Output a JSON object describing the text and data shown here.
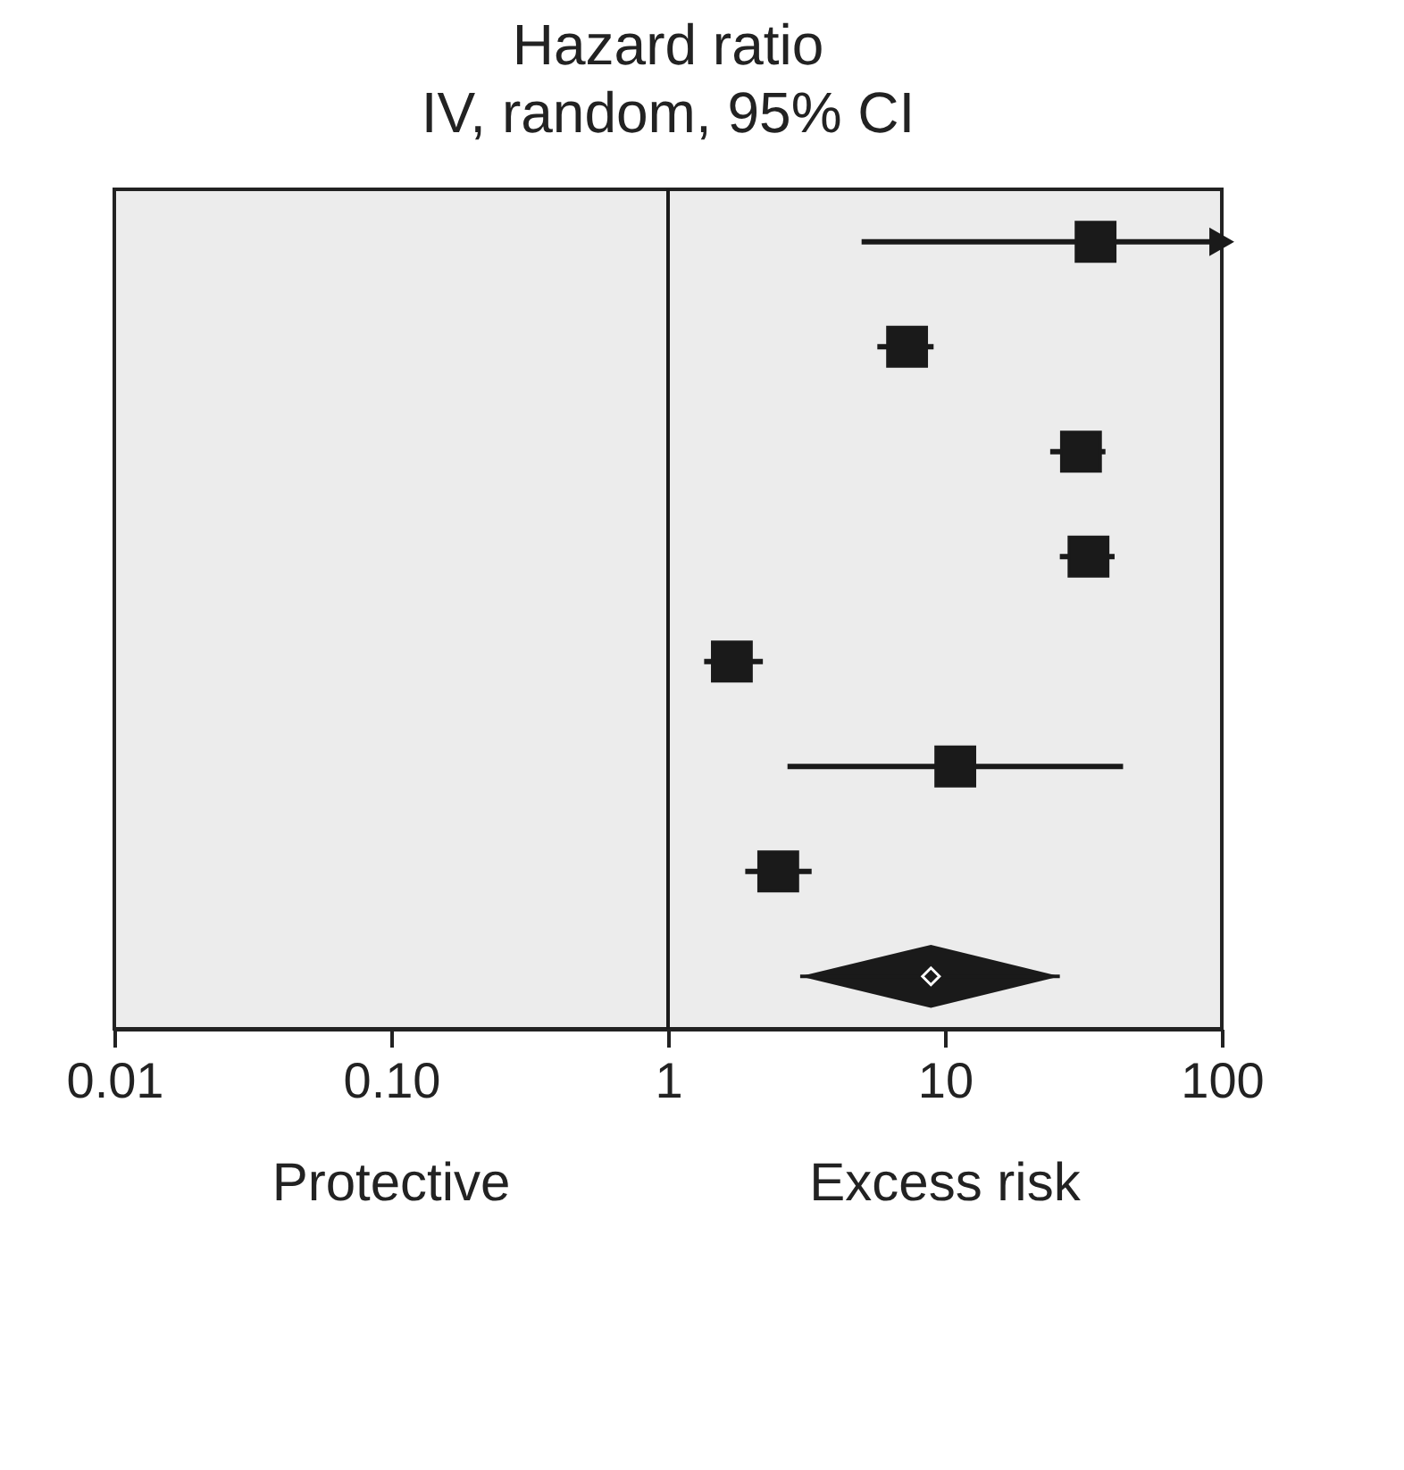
{
  "chart_data": {
    "type": "scatter",
    "orientation": "horizontal",
    "title": "Hazard ratio",
    "subtitle": "IV, random, 95% CI",
    "categories": [
      null,
      null,
      null,
      null,
      null,
      null,
      null,
      null
    ],
    "series": [
      {
        "marker": "square",
        "color": "#1a1a1a",
        "values": [
          35,
          7.3,
          31,
          33,
          1.7,
          10.9,
          2.5,
          null
        ],
        "errors": [
          [
            5.0,
            100
          ],
          [
            5.7,
            9.1
          ],
          [
            24,
            38
          ],
          [
            26,
            41
          ],
          [
            1.35,
            2.2
          ],
          [
            2.7,
            44
          ],
          [
            1.9,
            3.3
          ],
          null
        ]
      },
      {
        "marker": "diamond",
        "color": "#1a1a1a",
        "values": [
          null,
          null,
          null,
          null,
          null,
          null,
          null,
          8.9
        ],
        "errors": [
          null,
          null,
          null,
          null,
          null,
          null,
          null,
          [
            3.0,
            26
          ]
        ]
      }
    ],
    "log": "x",
    "xlim": [
      0.01,
      100
    ],
    "xticks": [
      0.01,
      {
        "value": 0.1,
        "label": "0.10"
      },
      1,
      10,
      100
    ],
    "ref_lines": [
      {
        "axis": "x",
        "value": 1,
        "color": "#1a1a1a"
      }
    ],
    "grid": false,
    "tick_labels": "x",
    "annotations": [
      "Protective",
      "Excess risk"
    ]
  }
}
